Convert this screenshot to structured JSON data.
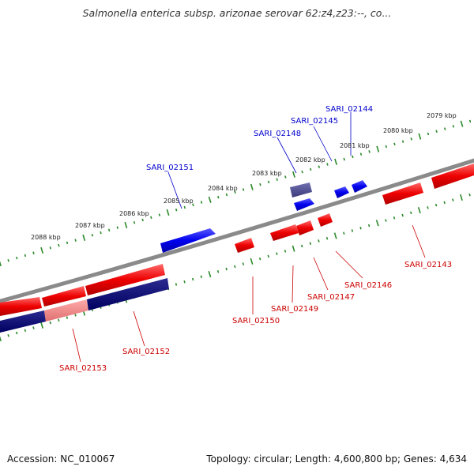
{
  "title": "Salmonella enterica subsp. arizonae serovar 62:z4,z23:--, co...",
  "footer": {
    "accession": "Accession: NC_010067",
    "summary": "Topology: circular; Length: 4,600,800 bp; Genes: 4,634"
  },
  "colors": {
    "backbone": "#8a8a8a",
    "ticks": "#2a8a2a",
    "forward_gene": "#0000ee",
    "reverse_gene": "#ee0000",
    "forward_label": "#0000cc",
    "reverse_label": "#cc0000",
    "dark_gene": "#000066",
    "pale_gene": "#f08080",
    "slate_gene": "#4a4a8c"
  },
  "scale_labels": [
    "2079 kbp",
    "2080 kbp",
    "2081 kbp",
    "2082 kbp",
    "2083 kbp",
    "2084 kbp",
    "2085 kbp",
    "2086 kbp",
    "2087 kbp",
    "2088 kbp"
  ],
  "gene_labels": {
    "forward": [
      "SARI_02144",
      "SARI_02145",
      "SARI_02148",
      "SARI_02151"
    ],
    "reverse": [
      "SARI_02143",
      "SARI_02146",
      "SARI_02147",
      "SARI_02149",
      "SARI_02150",
      "SARI_02152",
      "SARI_02153"
    ]
  }
}
